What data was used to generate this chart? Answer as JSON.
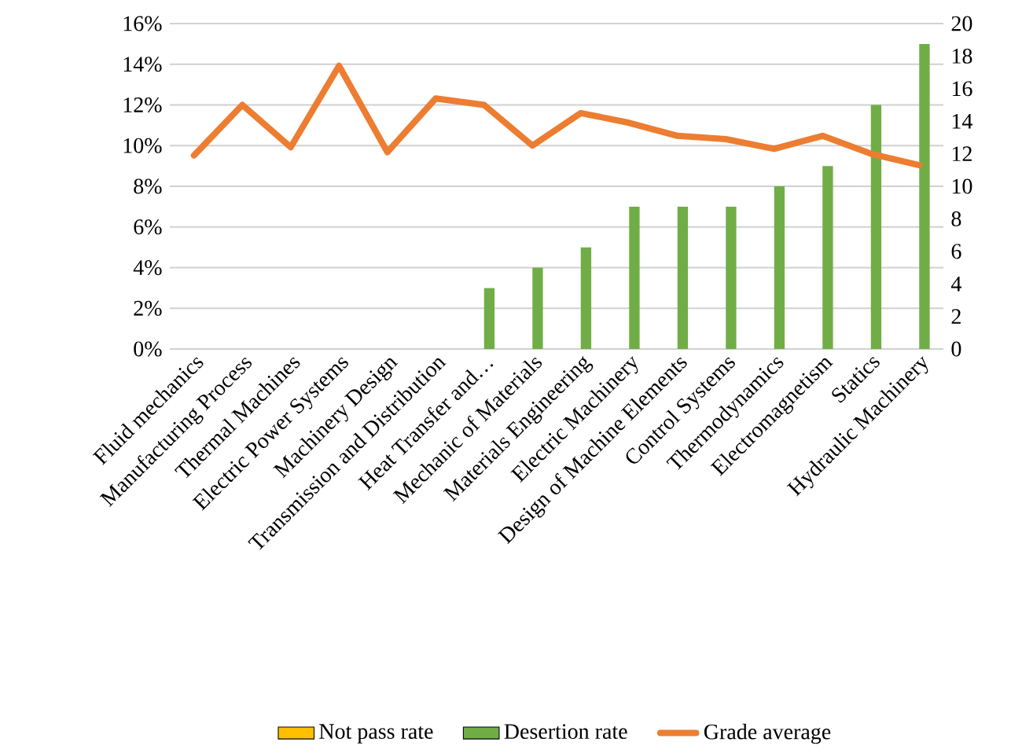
{
  "chart_data": {
    "type": "bar",
    "categories": [
      "Fluid mechanics",
      "Manufacturing Process",
      "Thermal Machines",
      "Electric Power Systems",
      "Machinery Design",
      "Transmission and Distribution",
      "Heat Transfer and…",
      "Mechanic of Materials",
      "Materials Engineering",
      "Electric Machinery",
      "Design of Machine Elements",
      "Control Systems",
      "Thermodynamics",
      "Electromagnetism",
      "Statics",
      "Hydraulic Machinery"
    ],
    "series": [
      {
        "name": "Not pass rate",
        "color": "#ffc000",
        "values": [
          0,
          0,
          0,
          0,
          0,
          0,
          0,
          0,
          0,
          0,
          0,
          0,
          0,
          0,
          0,
          0
        ]
      },
      {
        "name": "Desertion rate",
        "color": "#70ad47",
        "values": [
          0,
          0,
          0,
          0,
          0,
          0,
          3,
          4,
          5,
          7,
          7,
          7,
          8,
          9,
          12,
          15
        ]
      },
      {
        "name": "Grade average",
        "type": "line",
        "axis": "y2",
        "color": "#ed7d31",
        "values": [
          11.9,
          15.0,
          12.4,
          17.4,
          12.1,
          15.4,
          15.0,
          12.5,
          14.5,
          13.9,
          13.1,
          12.9,
          12.3,
          13.1,
          12.0,
          11.3
        ]
      }
    ],
    "ylim": [
      0,
      16
    ],
    "yticks": [
      {
        "value": 0,
        "label": "0%"
      },
      {
        "value": 2,
        "label": "2%"
      },
      {
        "value": 4,
        "label": "4%"
      },
      {
        "value": 6,
        "label": "6%"
      },
      {
        "value": 8,
        "label": "8%"
      },
      {
        "value": 10,
        "label": "10%"
      },
      {
        "value": 12,
        "label": "12%"
      },
      {
        "value": 14,
        "label": "14%"
      },
      {
        "value": 16,
        "label": "16%"
      }
    ],
    "y2lim": [
      0,
      20
    ],
    "y2ticks": [
      0,
      2,
      4,
      6,
      8,
      10,
      12,
      14,
      16,
      18,
      20
    ],
    "grid": "y",
    "legend": "bottom"
  }
}
